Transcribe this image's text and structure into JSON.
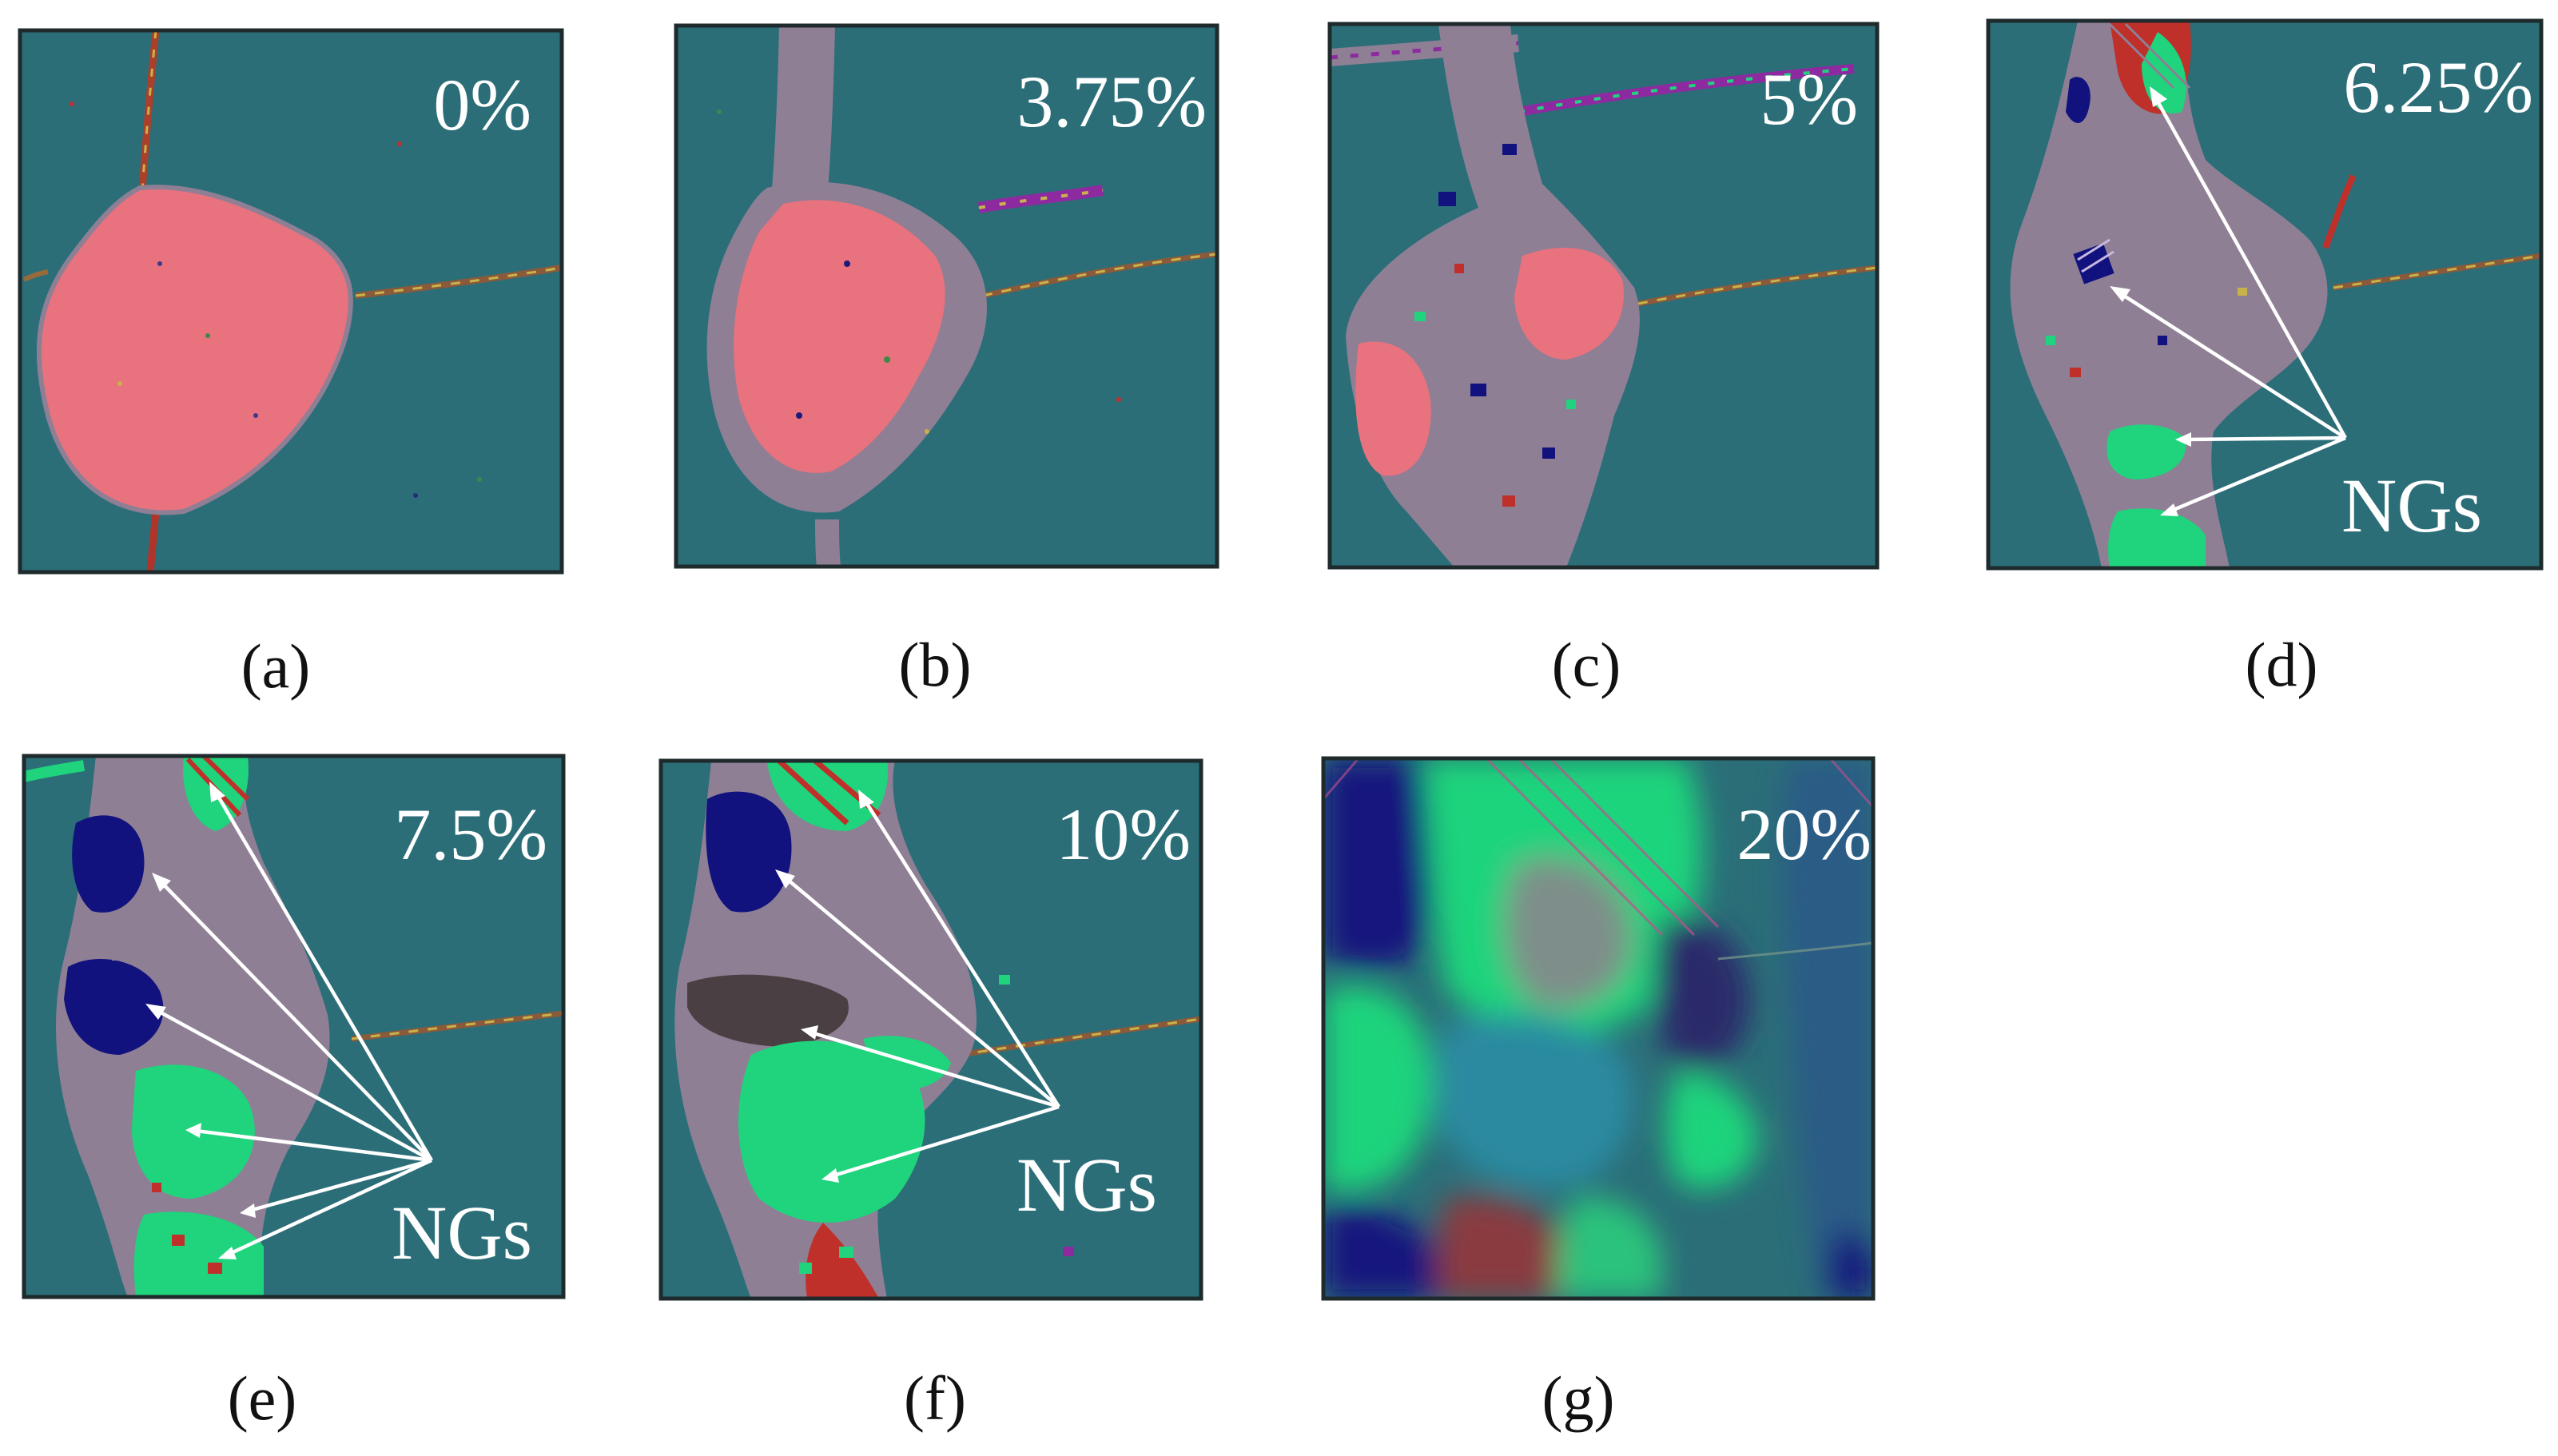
{
  "figure": {
    "panels": [
      {
        "caption": "(a)",
        "strain_label": "0%"
      },
      {
        "caption": "(b)",
        "strain_label": "3.75%"
      },
      {
        "caption": "(c)",
        "strain_label": "5%"
      },
      {
        "caption": "(d)",
        "strain_label": "6.25%",
        "annotation": "NGs"
      },
      {
        "caption": "(e)",
        "strain_label": "7.5%",
        "annotation": "NGs"
      },
      {
        "caption": "(f)",
        "strain_label": "10%",
        "annotation": "NGs"
      },
      {
        "caption": "(g)",
        "strain_label": "20%"
      }
    ]
  },
  "colors": {
    "matrix": "#2b6e78",
    "original_grain": "#e8727e",
    "transformed_region": "#8e7f95",
    "nanograin_green": "#1fd47c",
    "nanograin_blue": "#12127e",
    "nanograin_dark": "#4a3f42",
    "grain_boundary_red": "#c0302a",
    "grain_boundary_yellow": "#c8b34a",
    "label_text": "#ffffff",
    "caption_text": "#111111"
  }
}
